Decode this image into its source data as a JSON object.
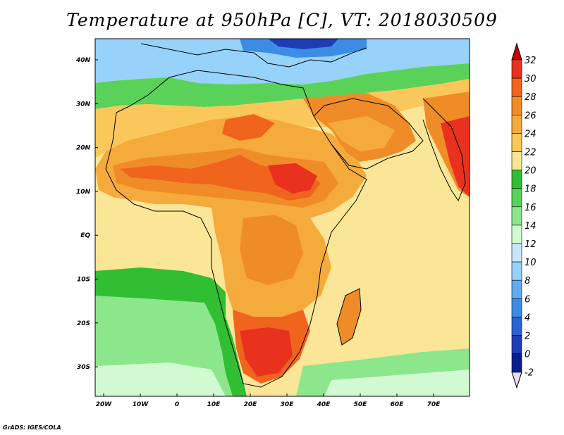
{
  "title": "Temperature at 950hPa [C], VT: 2018030509",
  "credit": "GrADS: IGES/COLA",
  "lat_labels": [
    "40N",
    "30N",
    "20N",
    "10N",
    "EQ",
    "10S",
    "20S",
    "30S"
  ],
  "lon_labels": [
    "20W",
    "10W",
    "0",
    "10E",
    "20E",
    "30E",
    "40E",
    "50E",
    "60E",
    "70E"
  ],
  "colorbar": {
    "labels": [
      "32",
      "30",
      "28",
      "26",
      "24",
      "22",
      "20",
      "18",
      "16",
      "14",
      "12",
      "10",
      "8",
      "6",
      "4",
      "2",
      "0",
      "-2"
    ],
    "colors": [
      "#c80000",
      "#e8321e",
      "#f0641e",
      "#f08c28",
      "#f5aa3c",
      "#fac85a",
      "#fae696",
      "#32be32",
      "#5ad25a",
      "#8ce68c",
      "#d2fad2",
      "#c8e6fa",
      "#96d2fa",
      "#64aaf0",
      "#3c8ce6",
      "#2864d2",
      "#1e3cb4",
      "#0a1e8c",
      "#e6dcf5"
    ],
    "top_cap_color": "#c80000",
    "bottom_cap_color": "#e6dcf5"
  },
  "legend_colors": {
    "ocean_background": "#fadc8c",
    "cold_north": "#64aaf0",
    "hot_core": "#e8321e",
    "green_band": "#32be32"
  }
}
